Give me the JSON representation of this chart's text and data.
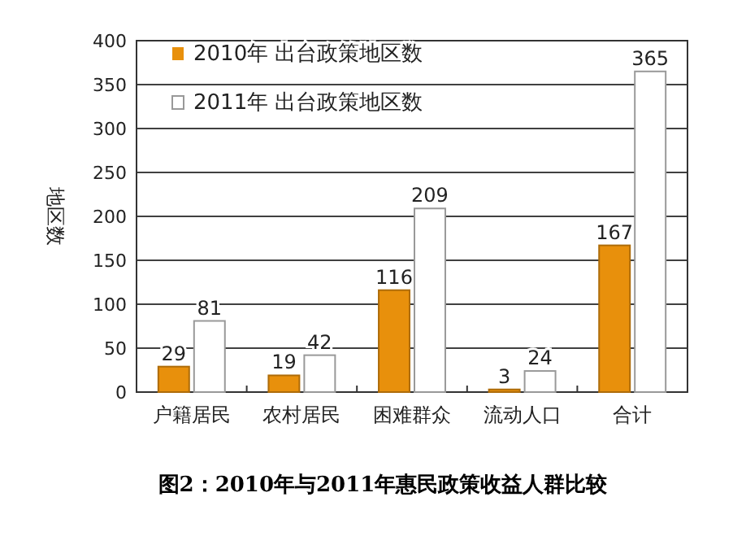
{
  "chart_data": {
    "type": "bar",
    "title": "图2：2010年与2011年惠民政策收益人群比较",
    "ylabel": "地区数",
    "categories": [
      "户籍居民",
      "农村居民",
      "困难群众",
      "流动人口",
      "合计"
    ],
    "series": [
      {
        "name": "2010年 出台政策地区数",
        "color": "#e8900c",
        "values": [
          29,
          19,
          116,
          3,
          167
        ]
      },
      {
        "name": "2011年 出台政策地区数",
        "color": "#ffffff",
        "values": [
          81,
          42,
          209,
          24,
          365
        ]
      }
    ],
    "ylim": [
      0,
      400
    ],
    "yticks": [
      0,
      50,
      100,
      150,
      200,
      250,
      300,
      350,
      400
    ],
    "grid": "y",
    "legend": "top left",
    "data_labels": true
  }
}
